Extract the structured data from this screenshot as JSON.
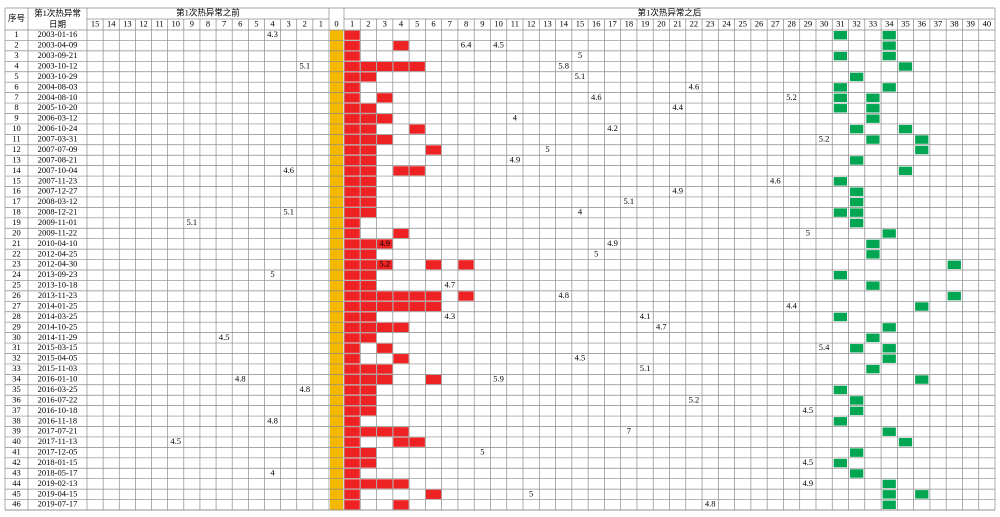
{
  "header": {
    "seq": "序号",
    "date": [
      "第1次热异常",
      "日期"
    ],
    "before": "第1次热异常之前",
    "after": "第1次热异常之后",
    "before_cols": [
      15,
      14,
      13,
      12,
      11,
      10,
      9,
      8,
      7,
      6,
      5,
      4,
      3,
      2,
      1
    ],
    "zero": "0",
    "after_cols": [
      1,
      2,
      3,
      4,
      5,
      6,
      7,
      8,
      9,
      10,
      11,
      12,
      13,
      14,
      15,
      16,
      17,
      18,
      19,
      20,
      21,
      22,
      23,
      24,
      25,
      26,
      27,
      28,
      29,
      30,
      31,
      32,
      33,
      34,
      35,
      36,
      37,
      38,
      39,
      40
    ]
  },
  "rows": [
    {
      "no": 1,
      "date": "2003-01-16",
      "red": [
        1
      ],
      "green": [
        31,
        34
      ],
      "before": {
        "4": "4.3"
      },
      "after": {}
    },
    {
      "no": 2,
      "date": "2003-04-09",
      "red": [
        1,
        4
      ],
      "green": [
        34
      ],
      "before": {},
      "after": {
        "8": "6.4",
        "10": "4.5"
      }
    },
    {
      "no": 3,
      "date": "2003-09-21",
      "red": [
        1
      ],
      "green": [
        31,
        34
      ],
      "before": {},
      "after": {
        "15": "5"
      }
    },
    {
      "no": 4,
      "date": "2003-10-12",
      "red": [
        1,
        2,
        3,
        4,
        5
      ],
      "green": [
        35
      ],
      "before": {
        "2": "5.1"
      },
      "after": {
        "14": "5.8"
      }
    },
    {
      "no": 5,
      "date": "2003-10-29",
      "red": [
        1,
        2
      ],
      "green": [
        32
      ],
      "before": {},
      "after": {
        "15": "5.1"
      }
    },
    {
      "no": 6,
      "date": "2004-08-03",
      "red": [
        1
      ],
      "green": [
        31,
        34
      ],
      "before": {},
      "after": {
        "22": "4.6"
      }
    },
    {
      "no": 7,
      "date": "2004-08-10",
      "red": [
        1,
        3
      ],
      "green": [
        31,
        33
      ],
      "before": {},
      "after": {
        "16": "4.6",
        "28": "5.2"
      }
    },
    {
      "no": 8,
      "date": "2005-10-20",
      "red": [
        1,
        2
      ],
      "green": [
        31,
        33
      ],
      "before": {},
      "after": {
        "21": "4.4"
      }
    },
    {
      "no": 9,
      "date": "2006-03-12",
      "red": [
        1,
        2,
        3
      ],
      "green": [
        33
      ],
      "before": {},
      "after": {
        "11": "4"
      }
    },
    {
      "no": 10,
      "date": "2006-10-24",
      "red": [
        1,
        2,
        5
      ],
      "green": [
        32,
        35
      ],
      "before": {},
      "after": {
        "17": "4.2"
      }
    },
    {
      "no": 11,
      "date": "2007-03-31",
      "red": [
        1,
        2,
        3
      ],
      "green": [
        33,
        36
      ],
      "before": {},
      "after": {
        "30": "5.2"
      }
    },
    {
      "no": 12,
      "date": "2007-07-09",
      "red": [
        1,
        2,
        6
      ],
      "green": [
        36
      ],
      "before": {},
      "after": {
        "13": "5"
      }
    },
    {
      "no": 13,
      "date": "2007-08-21",
      "red": [
        1,
        2
      ],
      "green": [
        32
      ],
      "before": {},
      "after": {
        "11": "4.9"
      }
    },
    {
      "no": 14,
      "date": "2007-10-04",
      "red": [
        1,
        2,
        4,
        5
      ],
      "green": [
        35
      ],
      "before": {
        "3": "4.6"
      },
      "after": {}
    },
    {
      "no": 15,
      "date": "2007-11-23",
      "red": [
        1,
        2
      ],
      "green": [
        31
      ],
      "before": {},
      "after": {
        "27": "4.6"
      }
    },
    {
      "no": 16,
      "date": "2007-12-27",
      "red": [
        1,
        2
      ],
      "green": [
        32
      ],
      "before": {},
      "after": {
        "21": "4.9"
      }
    },
    {
      "no": 17,
      "date": "2008-03-12",
      "red": [
        1,
        2
      ],
      "green": [
        32
      ],
      "before": {},
      "after": {
        "18": "5.1"
      }
    },
    {
      "no": 18,
      "date": "2008-12-21",
      "red": [
        1,
        2
      ],
      "green": [
        31,
        32
      ],
      "before": {
        "3": "5.1"
      },
      "after": {
        "15": "4"
      }
    },
    {
      "no": 19,
      "date": "2009-11-01",
      "red": [
        1
      ],
      "green": [
        32
      ],
      "before": {
        "9": "5.1"
      },
      "after": {}
    },
    {
      "no": 20,
      "date": "2009-11-22",
      "red": [
        1,
        4
      ],
      "green": [
        34
      ],
      "before": {},
      "after": {
        "29": "5"
      }
    },
    {
      "no": 21,
      "date": "2010-04-10",
      "red": [
        1,
        2,
        3
      ],
      "green": [
        33
      ],
      "before": {},
      "after": {
        "3": "4.9",
        "17": "4.9"
      }
    },
    {
      "no": 22,
      "date": "2012-04-25",
      "red": [
        1,
        2
      ],
      "green": [
        33
      ],
      "before": {},
      "after": {
        "16": "5"
      }
    },
    {
      "no": 23,
      "date": "2012-04-30",
      "red": [
        1,
        2,
        3,
        6,
        8
      ],
      "green": [
        38
      ],
      "before": {},
      "after": {
        "3": "5.2"
      }
    },
    {
      "no": 24,
      "date": "2013-09-23",
      "red": [
        1,
        2
      ],
      "green": [
        31
      ],
      "before": {
        "4": "5"
      },
      "after": {}
    },
    {
      "no": 25,
      "date": "2013-10-18",
      "red": [
        1,
        2
      ],
      "green": [
        33
      ],
      "before": {},
      "after": {
        "7": "4.7"
      }
    },
    {
      "no": 26,
      "date": "2013-11-23",
      "red": [
        1,
        2,
        3,
        4,
        5,
        6,
        8
      ],
      "green": [
        38
      ],
      "before": {},
      "after": {
        "14": "4.8"
      }
    },
    {
      "no": 27,
      "date": "2014-01-25",
      "red": [
        1,
        2,
        3,
        4,
        5,
        6
      ],
      "green": [
        36
      ],
      "before": {},
      "after": {
        "28": "4.4"
      }
    },
    {
      "no": 28,
      "date": "2014-03-25",
      "red": [
        1,
        2
      ],
      "green": [
        31
      ],
      "before": {},
      "after": {
        "7": "4.3",
        "19": "4.1"
      }
    },
    {
      "no": 29,
      "date": "2014-10-25",
      "red": [
        1,
        2,
        3,
        4
      ],
      "green": [
        34
      ],
      "before": {},
      "after": {
        "20": "4.7"
      }
    },
    {
      "no": 30,
      "date": "2014-11-29",
      "red": [
        1,
        2
      ],
      "green": [
        33
      ],
      "before": {
        "7": "4.5"
      },
      "after": {}
    },
    {
      "no": 31,
      "date": "2015-03-15",
      "red": [
        1,
        3
      ],
      "green": [
        32,
        34
      ],
      "before": {},
      "after": {
        "30": "5.4"
      }
    },
    {
      "no": 32,
      "date": "2015-04-05",
      "red": [
        1,
        4
      ],
      "green": [
        34
      ],
      "before": {},
      "after": {
        "15": "4.5"
      }
    },
    {
      "no": 33,
      "date": "2015-11-03",
      "red": [
        1,
        2,
        3
      ],
      "green": [
        33
      ],
      "before": {},
      "after": {
        "19": "5.1"
      }
    },
    {
      "no": 34,
      "date": "2016-01-10",
      "red": [
        1,
        2,
        3,
        6
      ],
      "green": [
        36
      ],
      "before": {
        "6": "4.8"
      },
      "after": {
        "10": "5.9"
      }
    },
    {
      "no": 35,
      "date": "2016-03-25",
      "red": [
        1,
        2
      ],
      "green": [
        31
      ],
      "before": {
        "2": "4.8"
      },
      "after": {}
    },
    {
      "no": 36,
      "date": "2016-07-22",
      "red": [
        1,
        2
      ],
      "green": [
        32
      ],
      "before": {},
      "after": {
        "22": "5.2"
      }
    },
    {
      "no": 37,
      "date": "2016-10-18",
      "red": [
        1,
        2
      ],
      "green": [
        32
      ],
      "before": {},
      "after": {
        "29": "4.5"
      }
    },
    {
      "no": 38,
      "date": "2016-11-18",
      "red": [
        1
      ],
      "green": [
        31
      ],
      "before": {
        "4": "4.8"
      },
      "after": {}
    },
    {
      "no": 39,
      "date": "2017-07-21",
      "red": [
        1,
        2,
        3,
        4
      ],
      "green": [
        34
      ],
      "before": {},
      "after": {
        "18": "7"
      }
    },
    {
      "no": 40,
      "date": "2017-11-13",
      "red": [
        1,
        4,
        5
      ],
      "green": [
        35
      ],
      "before": {
        "10": "4.5"
      },
      "after": {}
    },
    {
      "no": 41,
      "date": "2017-12-05",
      "red": [
        1,
        2
      ],
      "green": [
        32
      ],
      "before": {},
      "after": {
        "9": "5"
      }
    },
    {
      "no": 42,
      "date": "2018-01-15",
      "red": [
        1,
        2
      ],
      "green": [
        31
      ],
      "before": {},
      "after": {
        "29": "4.5"
      }
    },
    {
      "no": 43,
      "date": "2018-05-17",
      "red": [
        1
      ],
      "green": [
        32
      ],
      "before": {
        "4": "4"
      },
      "after": {}
    },
    {
      "no": 44,
      "date": "2019-02-13",
      "red": [
        1,
        2,
        3,
        4
      ],
      "green": [
        34
      ],
      "before": {},
      "after": {
        "29": "4.9"
      }
    },
    {
      "no": 45,
      "date": "2019-04-15",
      "red": [
        1,
        6
      ],
      "green": [
        34,
        36
      ],
      "before": {},
      "after": {
        "12": "5"
      }
    },
    {
      "no": 46,
      "date": "2019-07-17",
      "red": [
        1,
        4
      ],
      "green": [
        34
      ],
      "before": {},
      "after": {
        "23": "4.8"
      }
    }
  ]
}
